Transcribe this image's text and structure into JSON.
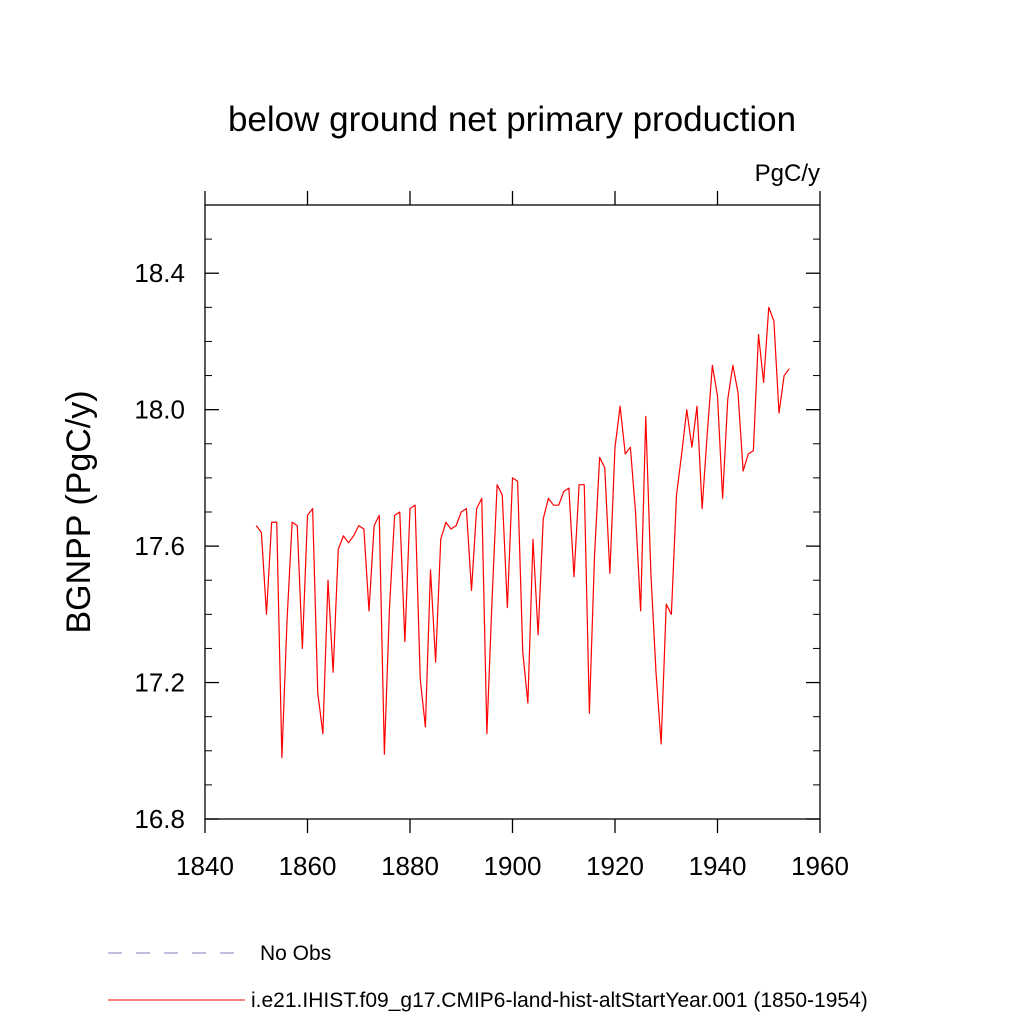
{
  "chart_data": {
    "type": "line",
    "title": "below ground net primary production",
    "units": "PgC/y",
    "ylabel": "BGNPP  (PgC/y)",
    "xlabel": "",
    "xlim": [
      1840,
      1960
    ],
    "ylim": [
      16.8,
      18.6
    ],
    "xticks": [
      1840,
      1860,
      1880,
      1900,
      1920,
      1940,
      1960
    ],
    "yticks": [
      16.8,
      17.2,
      17.6,
      18.0,
      18.4
    ],
    "ytick_labels": [
      "16.8",
      "17.2",
      "17.6",
      "18.0",
      "18.4"
    ],
    "grid": false,
    "legend_position": "bottom-left",
    "legend": [
      {
        "label": "No Obs",
        "color": "#7f7fbf",
        "style": "dashed"
      },
      {
        "label": "i.e21.IHIST.f09_g17.CMIP6-land-hist-altStartYear.001 (1850-1954)",
        "color": "#ff0000",
        "style": "solid"
      }
    ],
    "series": [
      {
        "color": "#ff0000",
        "x": [
          1850,
          1851,
          1852,
          1853,
          1854,
          1855,
          1856,
          1857,
          1858,
          1859,
          1860,
          1861,
          1862,
          1863,
          1864,
          1865,
          1866,
          1867,
          1868,
          1869,
          1870,
          1871,
          1872,
          1873,
          1874,
          1875,
          1876,
          1877,
          1878,
          1879,
          1880,
          1881,
          1882,
          1883,
          1884,
          1885,
          1886,
          1887,
          1888,
          1889,
          1890,
          1891,
          1892,
          1893,
          1894,
          1895,
          1896,
          1897,
          1898,
          1899,
          1900,
          1901,
          1902,
          1903,
          1904,
          1905,
          1906,
          1907,
          1908,
          1909,
          1910,
          1911,
          1912,
          1913,
          1914,
          1915,
          1916,
          1917,
          1918,
          1919,
          1920,
          1921,
          1922,
          1923,
          1924,
          1925,
          1926,
          1927,
          1928,
          1929,
          1930,
          1931,
          1932,
          1933,
          1934,
          1935,
          1936,
          1937,
          1938,
          1939,
          1940,
          1941,
          1942,
          1943,
          1944,
          1945,
          1946,
          1947,
          1948,
          1949,
          1950,
          1951,
          1952,
          1953,
          1954
        ],
        "values": [
          17.66,
          17.64,
          17.4,
          17.67,
          17.67,
          16.98,
          17.38,
          17.67,
          17.66,
          17.3,
          17.69,
          17.71,
          17.17,
          17.05,
          17.5,
          17.23,
          17.59,
          17.63,
          17.61,
          17.63,
          17.66,
          17.65,
          17.41,
          17.66,
          17.69,
          16.99,
          17.42,
          17.69,
          17.7,
          17.32,
          17.71,
          17.72,
          17.21,
          17.07,
          17.53,
          17.26,
          17.62,
          17.67,
          17.65,
          17.66,
          17.7,
          17.71,
          17.47,
          17.71,
          17.74,
          17.05,
          17.44,
          17.78,
          17.75,
          17.42,
          17.8,
          17.79,
          17.29,
          17.14,
          17.62,
          17.34,
          17.68,
          17.74,
          17.72,
          17.72,
          17.76,
          17.77,
          17.51,
          17.78,
          17.78,
          17.11,
          17.57,
          17.86,
          17.83,
          17.52,
          17.89,
          18.01,
          17.87,
          17.89,
          17.7,
          17.41,
          17.98,
          17.52,
          17.23,
          17.02,
          17.43,
          17.4,
          17.75,
          17.87,
          18.0,
          17.89,
          18.01,
          17.71,
          17.93,
          18.13,
          18.04,
          17.74,
          18.03,
          18.13,
          18.05,
          17.82,
          17.87,
          17.88,
          18.22,
          18.08,
          18.3,
          18.26,
          17.99,
          18.1,
          18.12
        ]
      }
    ]
  }
}
